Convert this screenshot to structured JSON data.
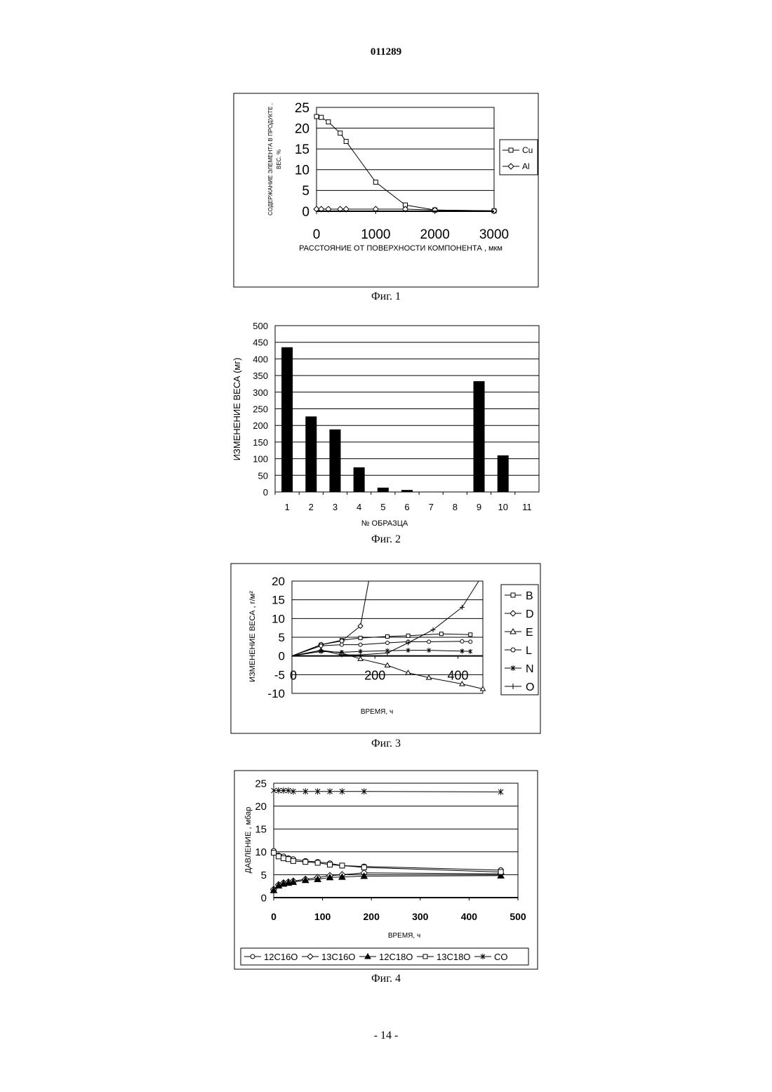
{
  "document": {
    "number": "011289",
    "page_label": "- 14 -"
  },
  "figures": [
    {
      "caption": "Фиг. 1"
    },
    {
      "caption": "Фиг. 2"
    },
    {
      "caption": "Фиг. 3"
    },
    {
      "caption": "Фиг. 4"
    }
  ],
  "chart_data": [
    {
      "type": "line",
      "xlabel": "РАССТОЯНИЕ ОТ ПОВЕРХНОСТИ КОМПОНЕНТА ,  мкм",
      "ylabel": [
        "СОДЕРЖАНИЕ ЭЛЕМЕНТА В ПРОДУКТЕ ,",
        "ВЕС. %"
      ],
      "xlim": [
        0,
        3000
      ],
      "ylim": [
        0,
        25
      ],
      "xticks": [
        "0",
        "1000",
        "2000",
        "3000"
      ],
      "yticks": [
        "25",
        "20",
        "15",
        "10",
        "5",
        "0"
      ],
      "legend_position": "right",
      "grid": "horizontal",
      "series": [
        {
          "name": "Cu",
          "marker": "square",
          "x": [
            0,
            80,
            200,
            400,
            500,
            1000,
            1500,
            2000,
            3000
          ],
          "y": [
            22.8,
            22.6,
            21.5,
            18.8,
            16.8,
            7.0,
            1.5,
            0.3,
            0.1
          ]
        },
        {
          "name": "Al",
          "marker": "diamond",
          "x": [
            0,
            80,
            200,
            400,
            500,
            1000,
            1500,
            2000,
            3000
          ],
          "y": [
            0.5,
            0.5,
            0.5,
            0.5,
            0.5,
            0.5,
            0.5,
            0.3,
            0.1
          ]
        }
      ]
    },
    {
      "type": "bar",
      "xlabel": "№ ОБРАЗЦА",
      "ylabel": "ИЗМЕНЕНИЕ ВЕСА (мг)",
      "ylim": [
        0,
        500
      ],
      "yticks": [
        "500",
        "450",
        "400",
        "350",
        "300",
        "250",
        "200",
        "150",
        "100",
        "50",
        "0"
      ],
      "grid": "horizontal",
      "categories": [
        "1",
        "2",
        "3",
        "4",
        "5",
        "6",
        "7",
        "8",
        "9",
        "10",
        "11"
      ],
      "values": [
        435,
        227,
        188,
        74,
        13,
        6,
        0,
        0,
        333,
        110,
        0
      ]
    },
    {
      "type": "line",
      "xlabel": "ВРЕМЯ,    ч",
      "ylabel": "ИЗМЕНЕНИЕ ВЕСА ,  г/м²",
      "xlim": [
        0,
        460
      ],
      "ylim": [
        -10,
        20
      ],
      "xticks": [
        "0",
        "200",
        "400"
      ],
      "yticks": [
        "20",
        "15",
        "10",
        "5",
        "0",
        "-5",
        "-10"
      ],
      "legend_position": "right",
      "grid": "horizontal",
      "series": [
        {
          "name": "B",
          "marker": "square",
          "x": [
            0,
            70,
            120,
            165,
            230,
            280,
            360,
            430
          ],
          "y": [
            0,
            3.0,
            4.2,
            4.8,
            5.2,
            5.4,
            5.9,
            5.7
          ]
        },
        {
          "name": "D",
          "marker": "diamond",
          "x": [
            0,
            70,
            120,
            165,
            185
          ],
          "y": [
            0,
            3.0,
            4.0,
            8.0,
            20
          ]
        },
        {
          "name": "E",
          "marker": "triangle",
          "x": [
            0,
            70,
            120,
            165,
            230,
            280,
            330,
            410,
            460
          ],
          "y": [
            0,
            1.5,
            0.8,
            -0.8,
            -2.5,
            -4.5,
            -5.8,
            -7.5,
            -8.8
          ]
        },
        {
          "name": "L",
          "marker": "circle",
          "x": [
            0,
            70,
            120,
            165,
            230,
            280,
            330,
            410,
            430
          ],
          "y": [
            0,
            2.7,
            3.0,
            3.0,
            3.5,
            3.8,
            3.8,
            3.9,
            3.8
          ]
        },
        {
          "name": "N",
          "marker": "star",
          "x": [
            0,
            70,
            120,
            165,
            230,
            280,
            330,
            410,
            430
          ],
          "y": [
            0,
            1.2,
            1.0,
            1.2,
            1.4,
            1.5,
            1.5,
            1.3,
            1.2
          ]
        },
        {
          "name": "O",
          "marker": "plus",
          "x": [
            0,
            70,
            120,
            165,
            230,
            280,
            340,
            410,
            450
          ],
          "y": [
            0,
            1.5,
            0.3,
            0.3,
            0.8,
            3.5,
            7.0,
            13.0,
            20
          ]
        }
      ]
    },
    {
      "type": "line",
      "xlabel": "ВРЕМЯ,   ч",
      "ylabel": "ДАВЛЕНИЕ ,  мбар",
      "xlim": [
        0,
        500
      ],
      "ylim": [
        0,
        25
      ],
      "xticks": [
        "0",
        "100",
        "200",
        "300",
        "400",
        "500"
      ],
      "yticks": [
        "25",
        "20",
        "15",
        "10",
        "5",
        "0"
      ],
      "legend_position": "bottom",
      "grid": "horizontal",
      "series": [
        {
          "name": "12C16O",
          "marker": "circle",
          "x": [
            0,
            10,
            20,
            30,
            40,
            65,
            90,
            115,
            140,
            185,
            465
          ],
          "y": [
            10.2,
            9.2,
            9.0,
            8.6,
            8.4,
            8.0,
            7.8,
            7.5,
            7.0,
            6.8,
            6.0
          ]
        },
        {
          "name": "13C16O",
          "marker": "diamond",
          "x": [
            0,
            10,
            20,
            30,
            40,
            65,
            90,
            115,
            140,
            185,
            465
          ],
          "y": [
            1.8,
            2.8,
            3.2,
            3.4,
            3.6,
            4.0,
            4.4,
            4.8,
            5.0,
            5.4,
            5.2
          ]
        },
        {
          "name": "12C18O",
          "marker": "triangle-filled",
          "x": [
            0,
            10,
            20,
            30,
            40,
            65,
            90,
            115,
            140,
            185,
            465
          ],
          "y": [
            1.6,
            2.6,
            3.0,
            3.2,
            3.4,
            3.8,
            4.0,
            4.4,
            4.5,
            4.7,
            4.8
          ]
        },
        {
          "name": "13C18O",
          "marker": "square",
          "x": [
            0,
            10,
            20,
            30,
            40,
            65,
            90,
            115,
            140,
            185,
            465
          ],
          "y": [
            9.8,
            9.0,
            8.6,
            8.4,
            8.0,
            7.8,
            7.6,
            7.2,
            7.0,
            6.6,
            5.6
          ]
        },
        {
          "name": "CO",
          "marker": "star",
          "x": [
            0,
            10,
            20,
            30,
            40,
            65,
            90,
            115,
            140,
            185,
            465
          ],
          "y": [
            23.4,
            23.4,
            23.4,
            23.4,
            23.2,
            23.2,
            23.2,
            23.2,
            23.2,
            23.2,
            23.1
          ]
        }
      ]
    }
  ]
}
